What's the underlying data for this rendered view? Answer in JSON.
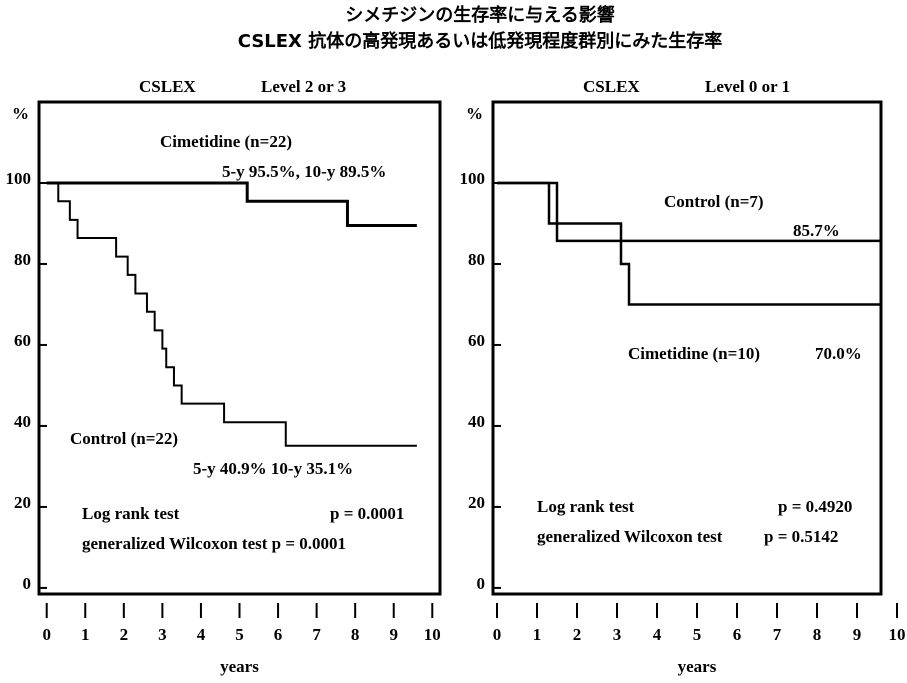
{
  "title": "シメチジンの生存率に与える影響",
  "subtitle": "CSLEX 抗体の高発現あるいは低発現程度群別にみた生存率",
  "chart_data": [
    {
      "type": "step",
      "group_label": "CSLEX",
      "title": "Level 2 or 3",
      "x_label": "years",
      "y_unit": "%",
      "xlim": [
        -0.2,
        10.2
      ],
      "ylim": [
        -1.5,
        120
      ],
      "xticks": [
        0,
        1,
        2,
        3,
        4,
        5,
        6,
        7,
        8,
        9,
        10
      ],
      "yticks": [
        0,
        20,
        40,
        60,
        80,
        100
      ],
      "series": [
        {
          "name": "Cimetidine (n=22)",
          "color": "#000000",
          "x": [
            0,
            5.2,
            7.8,
            9.6
          ],
          "values": [
            100,
            95.5,
            89.5,
            89.5
          ]
        },
        {
          "name": "Control (n=22)",
          "color": "#000000",
          "x": [
            0,
            0.3,
            0.6,
            0.8,
            1.8,
            2.1,
            2.3,
            2.6,
            2.8,
            3.0,
            3.1,
            3.3,
            3.5,
            4.6,
            6.2,
            9.6
          ],
          "values": [
            100,
            95.5,
            90.9,
            86.4,
            81.8,
            77.3,
            72.7,
            68.2,
            63.6,
            59.1,
            54.5,
            50,
            45.5,
            40.9,
            35.1,
            35.1
          ]
        }
      ],
      "annotations": [
        "5-y 95.5%, 10-y 89.5%",
        "5-y 40.9%   10-y 35.1%",
        "Log rank test",
        "p = 0.0001",
        "generalized Wilcoxon test p = 0.0001"
      ]
    },
    {
      "type": "step",
      "group_label": "CSLEX",
      "title": "Level 0 or 1",
      "x_label": "years",
      "y_unit": "%",
      "xlim": [
        -0.1,
        9.6
      ],
      "ylim": [
        -1.5,
        120
      ],
      "xticks": [
        0,
        1,
        2,
        3,
        4,
        5,
        6,
        7,
        8,
        9,
        10
      ],
      "yticks": [
        0,
        20,
        40,
        60,
        80,
        100
      ],
      "series": [
        {
          "name": "Control (n=7)",
          "color": "#000000",
          "x": [
            0,
            1.5,
            9.6
          ],
          "values": [
            100,
            85.7,
            85.7
          ]
        },
        {
          "name": "Cimetidine (n=10)",
          "color": "#000000",
          "x": [
            0,
            1.3,
            3.1,
            3.3,
            9.6
          ],
          "values": [
            100,
            90,
            80,
            70,
            70
          ]
        }
      ],
      "annotations": [
        "85.7%",
        "70.0%",
        "Log rank test",
        "p = 0.4920",
        "generalized Wilcoxon test",
        "p = 0.5142"
      ]
    }
  ]
}
